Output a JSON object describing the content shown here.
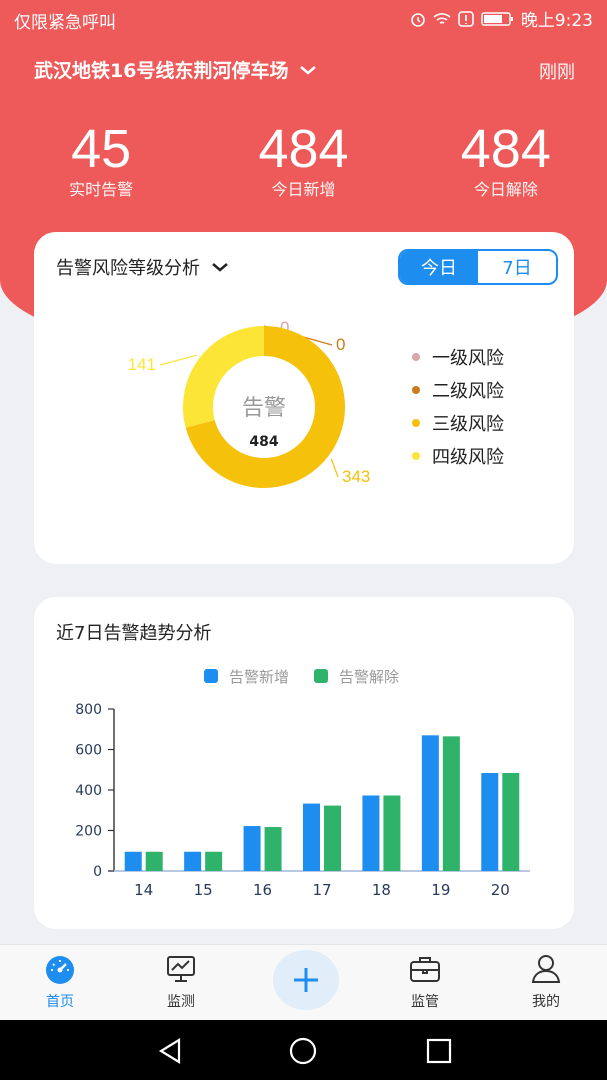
{
  "status": {
    "carrier": "仅限紧急呼叫",
    "time": "晚上9:23"
  },
  "header": {
    "station": "武汉地铁16号线东荆河停车场",
    "refresh": "刚刚"
  },
  "kpis": [
    {
      "value": "45",
      "label": "实时告警"
    },
    {
      "value": "484",
      "label": "今日新增"
    },
    {
      "value": "484",
      "label": "今日解除"
    }
  ],
  "risk_card": {
    "title": "告警风险等级分析",
    "segments": [
      "今日",
      "7日"
    ],
    "active_segment": "今日",
    "center_label": "告警",
    "center_value": "484",
    "colors": [
      "#d9a7a7",
      "#cc7a1a",
      "#f5c10a",
      "#fce536"
    ]
  },
  "trend_card": {
    "title": "近7日告警趋势分析"
  },
  "chart_data": [
    {
      "type": "pie",
      "categories": [
        "一级风险",
        "二级风险",
        "三级风险",
        "四级风险"
      ],
      "values": [
        0,
        0,
        343,
        141
      ],
      "title": "",
      "center_label": "告警",
      "center_value": 484
    },
    {
      "type": "bar",
      "categories": [
        "14",
        "15",
        "16",
        "17",
        "18",
        "19",
        "20"
      ],
      "series": [
        {
          "name": "告警新增",
          "values": [
            95,
            95,
            222,
            333,
            373,
            670,
            484
          ],
          "color": "#1d8df0"
        },
        {
          "name": "告警解除",
          "values": [
            95,
            95,
            217,
            323,
            373,
            665,
            484
          ],
          "color": "#2fb36a"
        }
      ],
      "ylim": [
        0,
        800
      ],
      "yticks": [
        0,
        200,
        400,
        600,
        800
      ],
      "legend": "top",
      "grid": false
    }
  ],
  "tabs": [
    {
      "label": "首页",
      "icon": "dashboard-icon",
      "active": true
    },
    {
      "label": "监测",
      "icon": "monitor-icon",
      "active": false
    },
    {
      "label": "",
      "icon": "plus-icon",
      "active": false
    },
    {
      "label": "监管",
      "icon": "briefcase-icon",
      "active": false
    },
    {
      "label": "我的",
      "icon": "user-icon",
      "active": false
    }
  ]
}
